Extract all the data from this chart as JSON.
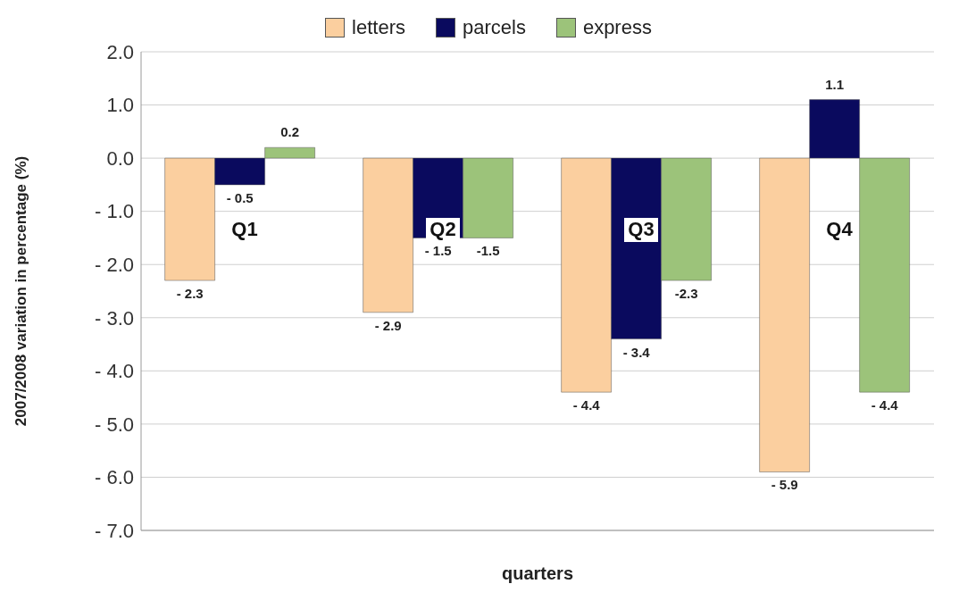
{
  "chart_data": {
    "type": "bar",
    "xlabel": "quarters",
    "ylabel": "2007/2008 variation in percentage (%)",
    "categories": [
      "Q1",
      "Q2",
      "Q3",
      "Q4"
    ],
    "series": [
      {
        "name": "letters",
        "color": "#fbcf9f",
        "values": [
          -2.3,
          -2.9,
          -4.4,
          -5.9
        ],
        "value_labels": [
          "- 2.3",
          "- 2.9",
          "- 4.4",
          "- 5.9"
        ]
      },
      {
        "name": "parcels",
        "color": "#0a0a5e",
        "values": [
          -0.5,
          -1.5,
          -3.4,
          1.1
        ],
        "value_labels": [
          "- 0.5",
          "- 1.5",
          "- 3.4",
          "1.1"
        ]
      },
      {
        "name": "express",
        "color": "#9cc37a",
        "values": [
          0.2,
          -1.5,
          -2.3,
          -4.4
        ],
        "value_labels": [
          "0.2",
          "-1.5",
          "-2.3",
          "- 4.4"
        ]
      }
    ],
    "ylim": [
      -7,
      2
    ],
    "yticks": [
      {
        "value": 2,
        "label": "2.0"
      },
      {
        "value": 1,
        "label": "1.0"
      },
      {
        "value": 0,
        "label": "0.0"
      },
      {
        "value": -1,
        "label": "-    1.0"
      },
      {
        "value": -2,
        "label": "-    2.0"
      },
      {
        "value": -3,
        "label": "-    3.0"
      },
      {
        "value": -4,
        "label": "-    4.0"
      },
      {
        "value": -5,
        "label": "-    5.0"
      },
      {
        "value": -6,
        "label": "-    6.0"
      },
      {
        "value": -7,
        "label": "-    7.0"
      }
    ],
    "grid": "y",
    "legend": "top"
  }
}
